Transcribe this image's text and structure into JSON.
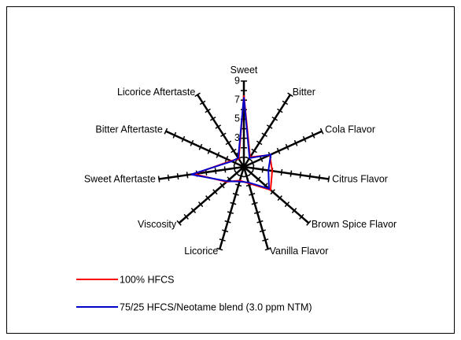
{
  "chart_data": {
    "type": "radar",
    "categories": [
      "Sweet",
      "Bitter",
      "Cola Flavor",
      "Citrus Flavor",
      "Brown Spice Flavor",
      "Vanilla Flavor",
      "Licorice",
      "Viscosity",
      "Sweet Aftertaste",
      "Bitter Aftertaste",
      "Licorice Aftertaste"
    ],
    "series": [
      {
        "name": "100% HFCS",
        "color": "#ff0000",
        "values": [
          7.5,
          1.2,
          3.0,
          3.0,
          3.7,
          1.8,
          1.5,
          2.4,
          5.3,
          1.5,
          1.0
        ]
      },
      {
        "name": "75/25 HFCS/Neotame blend (3.0 ppm NTM)",
        "color": "#0000cc",
        "values": [
          7.3,
          1.1,
          3.1,
          2.6,
          3.5,
          1.7,
          1.6,
          2.3,
          5.6,
          1.4,
          1.1
        ]
      }
    ],
    "ylim": [
      0,
      9
    ],
    "yticks": [
      1,
      3,
      5,
      7,
      9
    ],
    "yminor_ticks": [
      2,
      4,
      6,
      8
    ]
  }
}
